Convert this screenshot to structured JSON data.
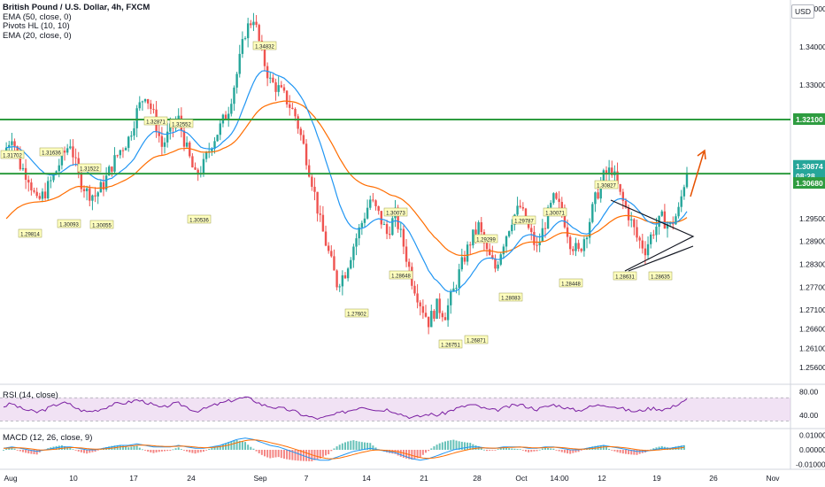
{
  "header": {
    "symbol_title": "British Pound / U.S. Dollar, 4h, FXCM",
    "indicators": [
      "EMA (50, close, 0)",
      "Pivots HL (10, 10)",
      "EMA (20, close, 0)"
    ],
    "currency": "USD"
  },
  "colors": {
    "up": "#26a69a",
    "down": "#ef5350",
    "ema20": "#2196f3",
    "ema50": "#ff6d00",
    "level": "#2e9c40",
    "rsi": "#7b1fa2",
    "rsi_band": "#e1bee7",
    "pivot_bg": "#ffffbf",
    "arrow": "#e65100",
    "macd_line": "#2196f3",
    "signal_line": "#ff6d00"
  },
  "price_axis": {
    "ticks": [
      "1.35000",
      "1.34000",
      "1.33000",
      "1.32100",
      "1.30874",
      "1.30680",
      "1.29500",
      "1.28900",
      "1.28300",
      "1.27700",
      "1.27100",
      "1.26600",
      "1.26100",
      "1.25600"
    ],
    "price_tags": [
      {
        "label": "1.32100",
        "kind": "level"
      },
      {
        "label": "1.30874",
        "kind": "price"
      },
      {
        "label": "08:28",
        "kind": "timer"
      },
      {
        "label": "1.30680",
        "kind": "level"
      }
    ]
  },
  "rsi": {
    "label": "RSI (14, close)",
    "ticks": [
      "80.00",
      "40.00"
    ]
  },
  "macd": {
    "label": "MACD (12, 26, close, 9)",
    "ticks": [
      "0.01000",
      "0.00000",
      "-0.01000"
    ]
  },
  "time_axis": {
    "labels": [
      "Aug",
      "10",
      "17",
      "24",
      "Sep",
      "7",
      "14",
      "21",
      "28",
      "Oct",
      "14:00",
      "12",
      "19",
      "26",
      "Nov"
    ]
  },
  "chart_data": {
    "type": "candlestick",
    "levels": [
      1.321,
      1.3068
    ],
    "ylim": [
      1.252,
      1.3505
    ],
    "pivots": [
      {
        "label": "1.31702",
        "value": 1.31702
      },
      {
        "label": "1.31636",
        "value": 1.31636
      },
      {
        "label": "1.31522",
        "value": 1.31522
      },
      {
        "label": "1.32871",
        "value": 1.32871
      },
      {
        "label": "1.32552",
        "value": 1.32552
      },
      {
        "label": "1.34832",
        "value": 1.34832
      },
      {
        "label": "1.29814",
        "value": 1.29814
      },
      {
        "label": "1.30093",
        "value": 1.30093
      },
      {
        "label": "1.30055",
        "value": 1.30055
      },
      {
        "label": "1.30536",
        "value": 1.30536
      },
      {
        "label": "1.30073",
        "value": 1.30073
      },
      {
        "label": "1.28648",
        "value": 1.28648
      },
      {
        "label": "1.27602",
        "value": 1.27602
      },
      {
        "label": "1.29299",
        "value": 1.29299
      },
      {
        "label": "1.26751",
        "value": 1.26751
      },
      {
        "label": "1.26871",
        "value": 1.26871
      },
      {
        "label": "1.28083",
        "value": 1.28083
      },
      {
        "label": "1.29787",
        "value": 1.29787
      },
      {
        "label": "1.30071",
        "value": 1.30071
      },
      {
        "label": "1.28448",
        "value": 1.28448
      },
      {
        "label": "1.30827",
        "value": 1.30827
      },
      {
        "label": "1.28631",
        "value": 1.28631
      },
      {
        "label": "1.28635",
        "value": 1.28635
      }
    ],
    "close_path": [
      1.312,
      1.317,
      1.309,
      1.306,
      1.299,
      1.302,
      1.306,
      1.311,
      1.315,
      1.306,
      1.302,
      1.301,
      1.304,
      1.309,
      1.313,
      1.316,
      1.323,
      1.328,
      1.322,
      1.314,
      1.318,
      1.321,
      1.313,
      1.306,
      1.309,
      1.315,
      1.319,
      1.324,
      1.333,
      1.344,
      1.348,
      1.338,
      1.331,
      1.329,
      1.326,
      1.322,
      1.314,
      1.305,
      1.294,
      1.286,
      1.278,
      1.281,
      1.288,
      1.294,
      1.3,
      1.296,
      1.291,
      1.296,
      1.288,
      1.279,
      1.273,
      1.268,
      1.272,
      1.27,
      1.276,
      1.283,
      1.289,
      1.293,
      1.286,
      1.282,
      1.289,
      1.295,
      1.298,
      1.292,
      1.287,
      1.294,
      1.3,
      1.297,
      1.289,
      1.286,
      1.292,
      1.3,
      1.306,
      1.308,
      1.301,
      1.296,
      1.29,
      1.287,
      1.292,
      1.295,
      1.293,
      1.297,
      1.308
    ]
  },
  "rsi_values": [
    55,
    60,
    52,
    48,
    45,
    50,
    56,
    62,
    58,
    50,
    46,
    48,
    52,
    58,
    60,
    62,
    66,
    63,
    57,
    52,
    58,
    60,
    54,
    47,
    50,
    56,
    60,
    64,
    68,
    70,
    66,
    58,
    55,
    52,
    50,
    46,
    40,
    36,
    34,
    38,
    42,
    46,
    50,
    55,
    52,
    48,
    50,
    46,
    40,
    36,
    38,
    42,
    40,
    44,
    50,
    54,
    58,
    55,
    50,
    48,
    52,
    56,
    58,
    54,
    50,
    54,
    58,
    55,
    50,
    48,
    53,
    56,
    58,
    56,
    52,
    48,
    46,
    50,
    52,
    50,
    52,
    60,
    68
  ],
  "macd_values": [
    0.001,
    0.002,
    0.001,
    0.0,
    -0.001,
    0.0,
    0.001,
    0.002,
    0.002,
    0.001,
    0.0,
    0.0,
    0.001,
    0.002,
    0.003,
    0.003,
    0.004,
    0.003,
    0.002,
    0.002,
    0.002,
    0.003,
    0.002,
    0.001,
    0.001,
    0.002,
    0.003,
    0.005,
    0.007,
    0.008,
    0.007,
    0.005,
    0.003,
    0.002,
    0.0,
    -0.002,
    -0.004,
    -0.006,
    -0.007,
    -0.007,
    -0.005,
    -0.003,
    -0.001,
    0.0,
    0.001,
    0.0,
    -0.001,
    -0.002,
    -0.004,
    -0.006,
    -0.007,
    -0.006,
    -0.004,
    -0.002,
    0.0,
    0.001,
    0.002,
    0.002,
    0.001,
    0.001,
    0.002,
    0.002,
    0.002,
    0.001,
    0.001,
    0.002,
    0.002,
    0.001,
    0.0,
    0.0,
    0.001,
    0.002,
    0.003,
    0.002,
    0.001,
    0.0,
    -0.001,
    -0.001,
    0.0,
    0.001,
    0.001,
    0.002,
    0.003
  ]
}
